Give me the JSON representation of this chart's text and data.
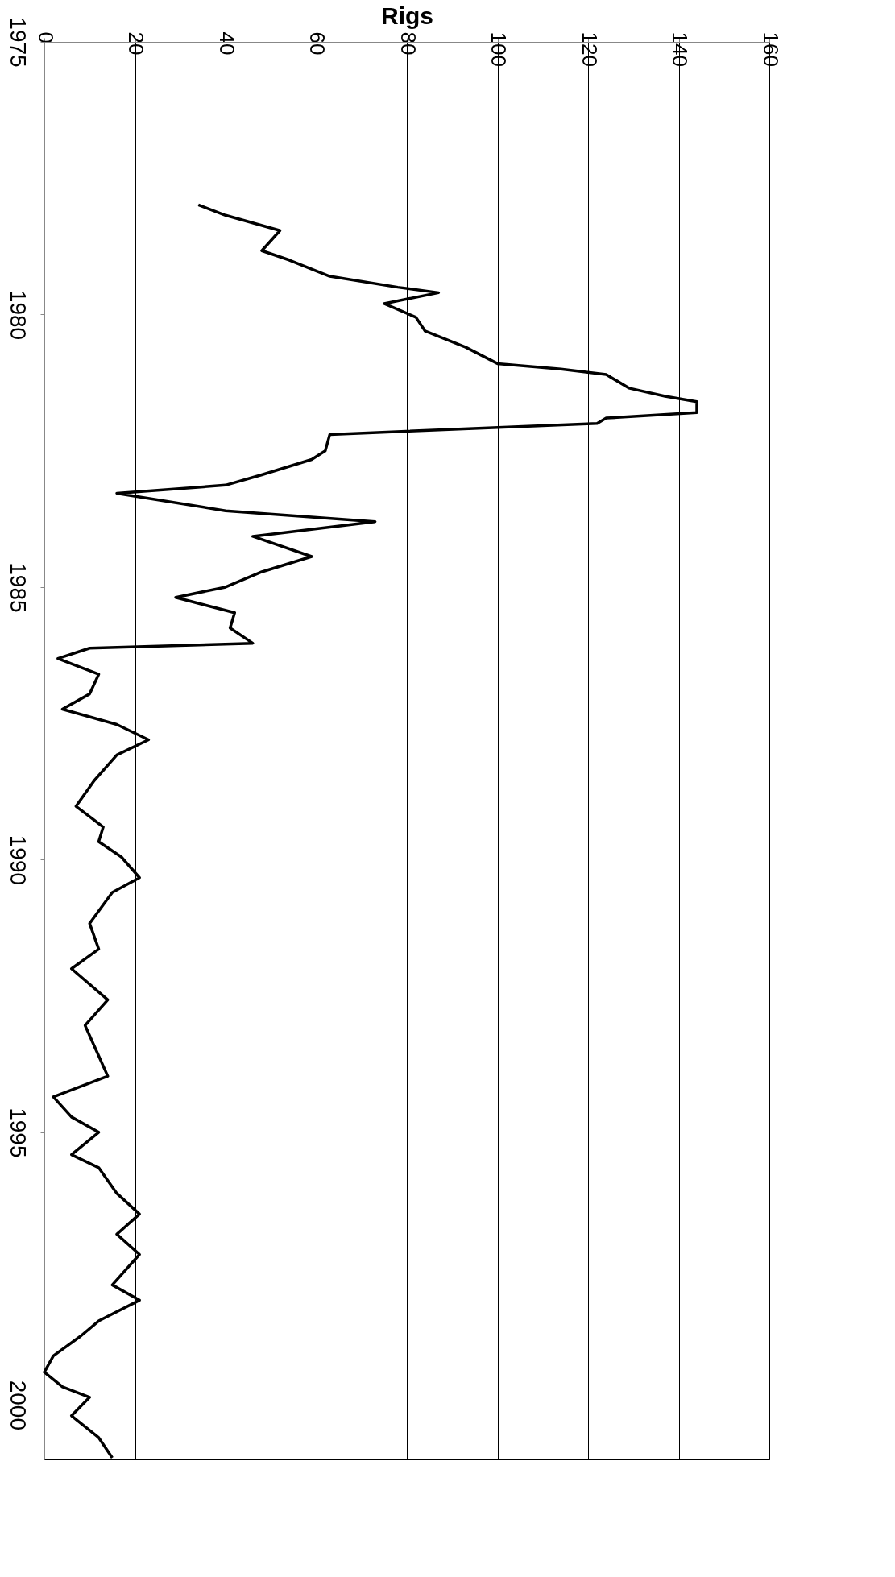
{
  "chart_data": {
    "type": "line",
    "orientation": "horizontal",
    "xlabel": "Rigs",
    "x": [
      1977.99,
      1978.18,
      1978.46,
      1978.83,
      1979.0,
      1979.3,
      1979.5,
      1979.6,
      1979.8,
      1980.05,
      1980.3,
      1980.6,
      1980.9,
      1981.0,
      1981.1,
      1981.35,
      1981.5,
      1981.6,
      1981.8,
      1981.9,
      1982.0,
      1982.2,
      1982.5,
      1982.66,
      1982.94,
      1983.13,
      1983.28,
      1983.6,
      1983.8,
      1984.07,
      1984.44,
      1984.72,
      1985.0,
      1985.19,
      1985.47,
      1985.75,
      1986.03,
      1986.12,
      1986.31,
      1986.6,
      1986.96,
      1987.24,
      1987.52,
      1987.8,
      1988.08,
      1988.55,
      1989.02,
      1989.4,
      1989.67,
      1989.95,
      1990.33,
      1990.6,
      1991.17,
      1991.64,
      1992.0,
      1992.57,
      1993.04,
      1993.6,
      1993.97,
      1994.35,
      1994.72,
      1995.0,
      1995.41,
      1995.65,
      1996.12,
      1996.5,
      1996.87,
      1997.24,
      1997.8,
      1998.08,
      1998.46,
      1998.74,
      1999.1,
      1999.4,
      1999.67,
      1999.86,
      2000.2,
      2000.6,
      2000.97
    ],
    "series": [
      {
        "color": "#000000",
        "values": [
          34,
          40,
          52,
          48,
          54,
          63,
          78,
          87,
          75,
          82,
          84,
          93,
          100,
          114,
          124,
          129,
          137,
          144,
          144,
          124,
          122,
          63,
          62,
          59,
          48,
          40,
          16,
          40,
          73,
          46,
          59,
          48,
          40,
          29,
          42,
          41,
          46,
          10,
          3,
          12,
          10,
          4,
          16,
          23,
          16,
          11,
          7,
          13,
          12,
          17,
          21,
          15,
          10,
          12,
          6,
          14,
          9,
          12,
          14,
          2,
          6,
          12,
          6,
          12,
          16,
          21,
          16,
          21,
          15,
          21,
          12,
          8,
          2,
          0,
          4,
          10,
          6,
          12,
          15
        ]
      }
    ],
    "xlim": [
      0,
      160
    ],
    "xticks": [
      0,
      20,
      40,
      60,
      80,
      100,
      120,
      140,
      160
    ],
    "ylim": [
      2001,
      1975
    ],
    "yticks": [
      1975,
      1980,
      1985,
      1990,
      1995,
      2000
    ],
    "grid": "x",
    "line_style": "solid"
  }
}
